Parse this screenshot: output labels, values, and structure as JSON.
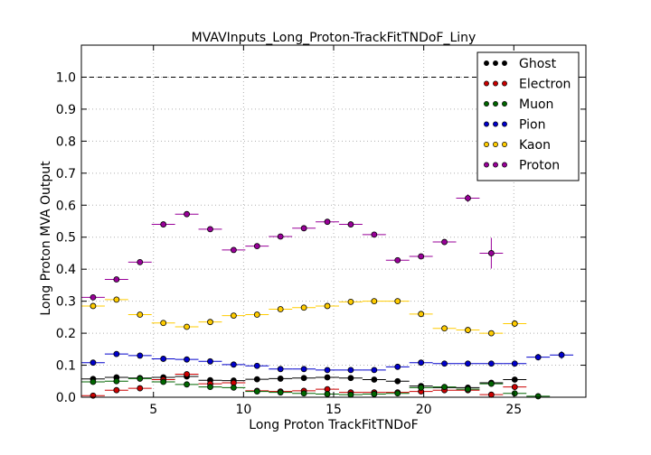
{
  "chart_data": {
    "type": "scatter",
    "title": "MVAVInputs_Long_Proton-TrackFitTNDoF_Liny",
    "xlabel": "Long Proton TrackFitTNDoF",
    "ylabel": "Long Proton MVA Output",
    "xlim": [
      1,
      29
    ],
    "ylim": [
      0,
      1.1
    ],
    "x_ticks": [
      5,
      10,
      15,
      20,
      25
    ],
    "y_ticks": [
      0.0,
      0.1,
      0.2,
      0.3,
      0.4,
      0.5,
      0.6,
      0.7,
      0.8,
      0.9,
      1.0
    ],
    "x_tick_labels": [
      "5",
      "10",
      "15",
      "20",
      "25"
    ],
    "y_tick_labels": [
      "0.0",
      "0.1",
      "0.2",
      "0.3",
      "0.4",
      "0.5",
      "0.6",
      "0.7",
      "0.8",
      "0.9",
      "1.0"
    ],
    "grid": true,
    "reference_line": 1.0,
    "bin_half_width": 0.65,
    "legend_position": "top-right",
    "series": [
      {
        "name": "Ghost",
        "color": "#000000",
        "x": [
          1.65,
          2.95,
          4.25,
          5.55,
          6.85,
          8.15,
          9.45,
          10.75,
          12.05,
          13.35,
          14.65,
          15.95,
          17.25,
          18.55,
          19.85,
          21.15,
          22.45,
          23.75,
          25.05
        ],
        "y": [
          0.057,
          0.062,
          0.06,
          0.062,
          0.065,
          0.053,
          0.052,
          0.056,
          0.058,
          0.06,
          0.062,
          0.06,
          0.055,
          0.05,
          0.035,
          0.03,
          0.03,
          0.045,
          0.055
        ],
        "err": [
          0.003,
          0.003,
          0.003,
          0.003,
          0.003,
          0.003,
          0.003,
          0.003,
          0.003,
          0.003,
          0.003,
          0.003,
          0.003,
          0.003,
          0.003,
          0.003,
          0.003,
          0.005,
          0.006
        ]
      },
      {
        "name": "Electron",
        "color": "#cc0000",
        "x": [
          1.65,
          2.95,
          4.25,
          5.55,
          6.85,
          8.15,
          9.45,
          10.75,
          12.05,
          13.35,
          14.65,
          15.95,
          17.25,
          18.55,
          19.85,
          21.15,
          22.45,
          23.75,
          25.05
        ],
        "y": [
          0.005,
          0.022,
          0.028,
          0.055,
          0.072,
          0.042,
          0.045,
          0.02,
          0.018,
          0.02,
          0.025,
          0.015,
          0.015,
          0.015,
          0.018,
          0.022,
          0.022,
          0.008,
          0.032
        ],
        "err": [
          0.002,
          0.003,
          0.003,
          0.003,
          0.003,
          0.003,
          0.003,
          0.003,
          0.003,
          0.003,
          0.003,
          0.003,
          0.003,
          0.003,
          0.003,
          0.003,
          0.003,
          0.004,
          0.006
        ]
      },
      {
        "name": "Muon",
        "color": "#006600",
        "x": [
          1.65,
          2.95,
          4.25,
          5.55,
          6.85,
          8.15,
          9.45,
          10.75,
          12.05,
          13.35,
          14.65,
          15.95,
          17.25,
          18.55,
          19.85,
          21.15,
          22.45,
          23.75,
          25.05,
          26.35
        ],
        "y": [
          0.048,
          0.05,
          0.058,
          0.048,
          0.04,
          0.032,
          0.03,
          0.018,
          0.015,
          0.012,
          0.01,
          0.008,
          0.01,
          0.012,
          0.03,
          0.032,
          0.025,
          0.042,
          0.012,
          0.003
        ],
        "err": [
          0.003,
          0.003,
          0.003,
          0.003,
          0.003,
          0.003,
          0.003,
          0.003,
          0.003,
          0.003,
          0.003,
          0.003,
          0.003,
          0.003,
          0.003,
          0.003,
          0.003,
          0.004,
          0.004,
          0.002
        ]
      },
      {
        "name": "Pion",
        "color": "#0000cc",
        "x": [
          1.65,
          2.95,
          4.25,
          5.55,
          6.85,
          8.15,
          9.45,
          10.75,
          12.05,
          13.35,
          14.65,
          15.95,
          17.25,
          18.55,
          19.85,
          21.15,
          22.45,
          23.75,
          25.05,
          26.35,
          27.65
        ],
        "y": [
          0.108,
          0.135,
          0.13,
          0.12,
          0.118,
          0.112,
          0.102,
          0.098,
          0.088,
          0.088,
          0.085,
          0.085,
          0.085,
          0.095,
          0.108,
          0.105,
          0.105,
          0.105,
          0.105,
          0.125,
          0.132
        ],
        "err": [
          0.003,
          0.003,
          0.003,
          0.003,
          0.003,
          0.003,
          0.003,
          0.003,
          0.003,
          0.003,
          0.003,
          0.003,
          0.003,
          0.003,
          0.003,
          0.003,
          0.003,
          0.003,
          0.003,
          0.01,
          0.012
        ]
      },
      {
        "name": "Kaon",
        "color": "#ffcc00",
        "x": [
          1.65,
          2.95,
          4.25,
          5.55,
          6.85,
          8.15,
          9.45,
          10.75,
          12.05,
          13.35,
          14.65,
          15.95,
          17.25,
          18.55,
          19.85,
          21.15,
          22.45,
          23.75,
          25.05
        ],
        "y": [
          0.285,
          0.305,
          0.258,
          0.232,
          0.22,
          0.235,
          0.255,
          0.258,
          0.275,
          0.28,
          0.285,
          0.298,
          0.3,
          0.3,
          0.26,
          0.215,
          0.21,
          0.2,
          0.23
        ],
        "err": [
          0.003,
          0.003,
          0.003,
          0.003,
          0.003,
          0.003,
          0.003,
          0.003,
          0.003,
          0.003,
          0.003,
          0.003,
          0.003,
          0.003,
          0.003,
          0.003,
          0.003,
          0.004,
          0.01
        ]
      },
      {
        "name": "Proton",
        "color": "#990099",
        "x": [
          1.65,
          2.95,
          4.25,
          5.55,
          6.85,
          8.15,
          9.45,
          10.75,
          12.05,
          13.35,
          14.65,
          15.95,
          17.25,
          18.55,
          19.85,
          21.15,
          22.45,
          23.75,
          25.05
        ],
        "y": [
          0.312,
          0.368,
          0.422,
          0.54,
          0.572,
          0.525,
          0.46,
          0.472,
          0.502,
          0.528,
          0.548,
          0.54,
          0.508,
          0.428,
          0.44,
          0.485,
          0.622,
          0.45,
          0.0
        ],
        "err": [
          0.003,
          0.003,
          0.003,
          0.003,
          0.003,
          0.003,
          0.003,
          0.003,
          0.003,
          0.003,
          0.003,
          0.003,
          0.003,
          0.003,
          0.003,
          0.004,
          0.012,
          0.048,
          0.0
        ]
      }
    ]
  }
}
